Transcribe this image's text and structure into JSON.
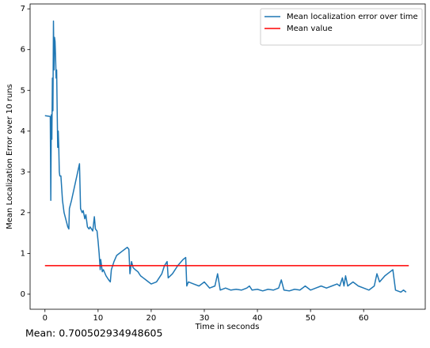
{
  "chart_data": {
    "type": "line",
    "xlabel": "Time in seconds",
    "ylabel": "Mean Localization Error over 10 runs",
    "annotation": "Mean: 0.700502934948605",
    "xlim": [
      -2.8,
      71.6
    ],
    "ylim": [
      -0.37,
      7.12
    ],
    "xticks": [
      0,
      10,
      20,
      30,
      40,
      50,
      60
    ],
    "yticks": [
      0,
      1,
      2,
      3,
      4,
      5,
      6,
      7
    ],
    "legend": "upper right",
    "grid": false,
    "series": [
      {
        "name": "Mean localization error over time",
        "color": "#1f77b4",
        "x": [
          0,
          1,
          1.1,
          1.2,
          1.3,
          1.4,
          1.5,
          1.6,
          1.7,
          1.8,
          1.9,
          2.0,
          2.1,
          2.2,
          2.3,
          2.4,
          2.5,
          2.6,
          2.7,
          2.8,
          3.0,
          3.3,
          3.6,
          4.0,
          4.3,
          4.5,
          4.6,
          5.0,
          5.5,
          6.0,
          6.5,
          6.7,
          7.0,
          7.2,
          7.5,
          7.7,
          8.0,
          8.3,
          8.5,
          9.0,
          9.3,
          9.5,
          9.8,
          10.0,
          10.2,
          10.4,
          10.5,
          10.8,
          11.0,
          11.5,
          12.0,
          12.3,
          12.5,
          13,
          13.5,
          14,
          14.5,
          15,
          15.5,
          15.8,
          16.0,
          16.3,
          16.6,
          17,
          17.5,
          18,
          18.5,
          19,
          19.5,
          20,
          21,
          22,
          22.5,
          23,
          23.2,
          24,
          25,
          26,
          26.5,
          26.7,
          27,
          28,
          29,
          30,
          31,
          32,
          32.5,
          33,
          34,
          35,
          36,
          37,
          38,
          38.5,
          39,
          40,
          41,
          42,
          43,
          44,
          44.5,
          45,
          46,
          47,
          48,
          49,
          50,
          51,
          52,
          53,
          54,
          55,
          55.5,
          56,
          56.3,
          56.6,
          57,
          58,
          59,
          60,
          61,
          62,
          62.5,
          63,
          64,
          65,
          65.5,
          66,
          67,
          67.5,
          68
        ],
        "values": [
          4.38,
          4.36,
          2.3,
          4.4,
          3.8,
          5.3,
          4.5,
          6.7,
          5.5,
          6.3,
          6.2,
          5.8,
          5.3,
          5.5,
          4.5,
          3.6,
          4.0,
          3.6,
          3.0,
          2.9,
          2.9,
          2.3,
          2.0,
          1.8,
          1.65,
          1.6,
          2.1,
          2.3,
          2.6,
          2.9,
          3.2,
          2.1,
          2.0,
          2.05,
          1.85,
          1.95,
          1.65,
          1.6,
          1.65,
          1.55,
          1.9,
          1.6,
          1.55,
          1.3,
          1.0,
          0.6,
          0.85,
          0.55,
          0.6,
          0.45,
          0.35,
          0.3,
          0.6,
          0.8,
          0.95,
          1.0,
          1.05,
          1.1,
          1.15,
          1.1,
          0.5,
          0.8,
          0.65,
          0.6,
          0.55,
          0.45,
          0.4,
          0.35,
          0.3,
          0.25,
          0.3,
          0.5,
          0.7,
          0.8,
          0.4,
          0.5,
          0.7,
          0.85,
          0.9,
          0.2,
          0.3,
          0.25,
          0.2,
          0.3,
          0.15,
          0.2,
          0.5,
          0.1,
          0.15,
          0.1,
          0.12,
          0.1,
          0.15,
          0.2,
          0.1,
          0.12,
          0.08,
          0.12,
          0.1,
          0.15,
          0.35,
          0.1,
          0.08,
          0.12,
          0.1,
          0.2,
          0.1,
          0.15,
          0.2,
          0.15,
          0.2,
          0.25,
          0.2,
          0.4,
          0.2,
          0.45,
          0.2,
          0.3,
          0.2,
          0.15,
          0.1,
          0.2,
          0.5,
          0.3,
          0.45,
          0.55,
          0.6,
          0.1,
          0.05,
          0.1,
          0.05
        ]
      },
      {
        "name": "Mean value",
        "color": "#ff0000",
        "x": [
          0,
          68.5
        ],
        "values": [
          0.700502934948605,
          0.700502934948605
        ]
      }
    ]
  }
}
